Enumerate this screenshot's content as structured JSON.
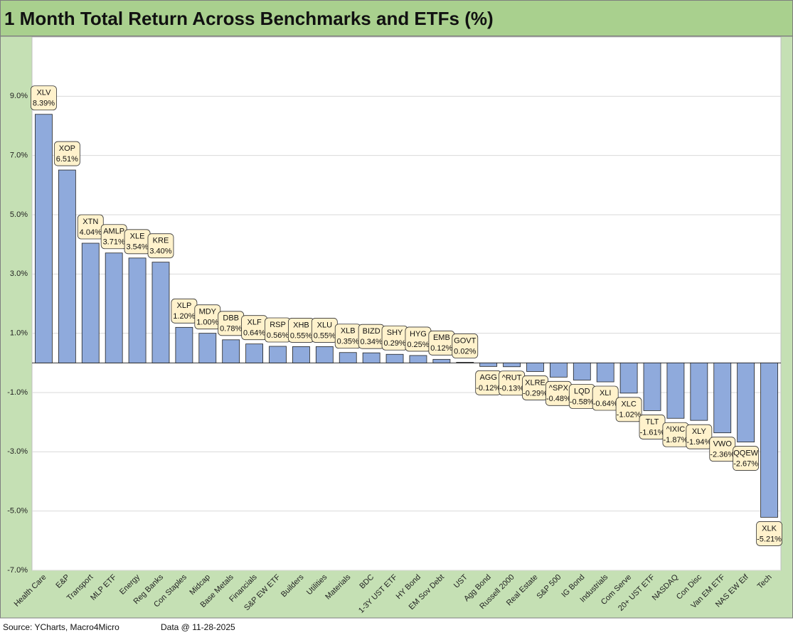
{
  "chart_data": {
    "type": "bar",
    "title": "1 Month Total Return Across Benchmarks and ETFs (%)",
    "source": "Source: YCharts, Macro4Micro",
    "date_note": "Data @ 11-28-2025",
    "categories": [
      "Health Care",
      "E&P",
      "Transport",
      "MLP ETF",
      "Energy",
      "Reg Banks",
      "Con Staples",
      "Midcap",
      "Base Metals",
      "Financials",
      "S&P EW ETF",
      "Builders",
      "Utilities",
      "Materials",
      "BDC",
      "1-3Y UST ETF",
      "HY Bond",
      "EM Sov Debt",
      "UST",
      "Agg Bond",
      "Russell 2000",
      "Real Estate",
      "S&P 500",
      "IG Bond",
      "Industrials",
      "Com Serve",
      "20+ UST ETF",
      "NASDAQ",
      "Con Disc",
      "Van EM ETF",
      "NAS EW Etf",
      "Tech"
    ],
    "tickers": [
      "XLV",
      "XOP",
      "XTN",
      "AMLP",
      "XLE",
      "KRE",
      "XLP",
      "MDY",
      "DBB",
      "XLF",
      "RSP",
      "XHB",
      "XLU",
      "XLB",
      "BIZD",
      "SHY",
      "HYG",
      "EMB",
      "GOVT",
      "AGG",
      "^RUT",
      "XLRE",
      "^SPX",
      "LQD",
      "XLI",
      "XLC",
      "TLT",
      "^IXIC",
      "XLY",
      "VWO",
      "QQEW",
      "XLK"
    ],
    "values": [
      8.39,
      6.51,
      4.04,
      3.71,
      3.54,
      3.4,
      1.2,
      1.0,
      0.78,
      0.64,
      0.56,
      0.55,
      0.55,
      0.35,
      0.34,
      0.29,
      0.25,
      0.12,
      0.02,
      -0.12,
      -0.13,
      -0.29,
      -0.48,
      -0.58,
      -0.64,
      -1.02,
      -1.61,
      -1.87,
      -1.94,
      -2.36,
      -2.67,
      -5.21
    ],
    "value_labels": [
      "8.39%",
      "6.51%",
      "4.04%",
      "3.71%",
      "3.54%",
      "3.40%",
      "1.20%",
      "1.00%",
      "0.78%",
      "0.64%",
      "0.56%",
      "0.55%",
      "0.55%",
      "0.35%",
      "0.34%",
      "0.29%",
      "0.25%",
      "0.12%",
      "0.02%",
      "-0.12%",
      "-0.13%",
      "-0.29%",
      "-0.48%",
      "-0.58%",
      "-0.64%",
      "-1.02%",
      "-1.61%",
      "-1.87%",
      "-1.94%",
      "-2.36%",
      "-2.67%",
      "-5.21%"
    ],
    "color": "#8faadc",
    "ylim": [
      -7,
      11
    ],
    "yticks": [
      {
        "value": 9,
        "label": "9.0%"
      },
      {
        "value": 7,
        "label": "7.0%"
      },
      {
        "value": 5,
        "label": "5.0%"
      },
      {
        "value": 3,
        "label": "3.0%"
      },
      {
        "value": 1,
        "label": "1.0%"
      },
      {
        "value": -1,
        "label": "-1.0%"
      },
      {
        "value": -3,
        "label": "-3.0%"
      },
      {
        "value": -5,
        "label": "-5.0%"
      },
      {
        "value": -7,
        "label": "-7.0%"
      }
    ],
    "grid": true
  }
}
